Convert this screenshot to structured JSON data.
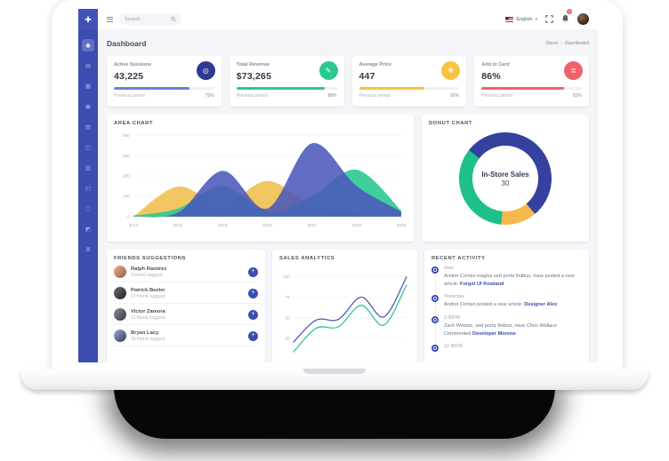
{
  "colors": {
    "theme_blue": "#3c4cb1",
    "green": "#2bc990",
    "yellow": "#f5b84b",
    "red": "#f0616d",
    "page_bg": "#f3f5f8"
  },
  "sidebar": {
    "logo_glyph": "✚",
    "items": [
      {
        "name": "dashboard",
        "glyph": "◉",
        "active": true
      },
      {
        "name": "apps",
        "glyph": "▤",
        "active": false
      },
      {
        "name": "layouts",
        "glyph": "▦",
        "active": false
      },
      {
        "name": "pages",
        "glyph": "▣",
        "active": false
      },
      {
        "name": "widgets",
        "glyph": "▧",
        "active": false
      },
      {
        "name": "forms",
        "glyph": "◫",
        "active": false
      },
      {
        "name": "tables",
        "glyph": "▥",
        "active": false
      },
      {
        "name": "charts",
        "glyph": "◰",
        "active": false
      },
      {
        "name": "icons",
        "glyph": "⬡",
        "active": false
      },
      {
        "name": "maps",
        "glyph": "◩",
        "active": false
      },
      {
        "name": "share",
        "glyph": "⌘",
        "active": false
      }
    ]
  },
  "topbar": {
    "search_placeholder": "Search.",
    "language": "English",
    "caret": "▾",
    "bell_badge": "3"
  },
  "page": {
    "title": "Dashboard",
    "breadcrumb_root": "Steex",
    "breadcrumb_sep": "›",
    "breadcrumb_current": "Dashboard"
  },
  "stat_cards": [
    {
      "label": "Active Sessions",
      "value": "43,225",
      "icon": "globe-icon",
      "icon_glyph": "◎",
      "icon_color": "#2c3a94",
      "bar_color": "#6d7edc",
      "progress": 75,
      "footer": "Previous period",
      "percent": "75%"
    },
    {
      "label": "Total Revenue",
      "value": "$73,265",
      "icon": "pencil-icon",
      "icon_glyph": "✎",
      "icon_color": "#2bc990",
      "bar_color": "#2bc990",
      "progress": 88,
      "footer": "Previous period",
      "percent": "88%"
    },
    {
      "label": "Average Price",
      "value": "447",
      "icon": "tag-icon",
      "icon_glyph": "❖",
      "icon_color": "#f8c341",
      "bar_color": "#f6c343",
      "progress": 65,
      "footer": "Previous period",
      "percent": "65%"
    },
    {
      "label": "Add to Card",
      "value": "86%",
      "icon": "layers-icon",
      "icon_glyph": "≣",
      "icon_color": "#f0616d",
      "bar_color": "#f0616d",
      "progress": 82,
      "footer": "Previous period",
      "percent": "82%"
    }
  ],
  "chart_data": [
    {
      "type": "area",
      "title": "AREA CHART",
      "x": [
        "2013",
        "2014",
        "2015",
        "2016",
        "2017",
        "2018",
        "2019"
      ],
      "series": [
        {
          "name": "yellow-series",
          "color": "#efc050",
          "opacity": 0.9,
          "values": [
            0,
            148,
            60,
            175,
            60,
            15,
            5
          ]
        },
        {
          "name": "green-series",
          "color": "#2bc990",
          "opacity": 0.9,
          "values": [
            5,
            40,
            150,
            25,
            100,
            230,
            30
          ]
        },
        {
          "name": "blue-series",
          "color": "#4b58b9",
          "opacity": 0.88,
          "values": [
            0,
            20,
            225,
            40,
            360,
            150,
            25
          ]
        }
      ],
      "ylim": [
        0,
        400
      ],
      "yticks": [
        0,
        100,
        200,
        300,
        400
      ],
      "grid": true,
      "legend": false
    },
    {
      "type": "pie",
      "title": "DONUT CHART",
      "center_label": "In-Store Sales",
      "center_value": "30",
      "start_angle_deg": -52,
      "slices": [
        {
          "name": "segment-1",
          "deg": 192,
          "percent": 53.3,
          "color": "#35419e"
        },
        {
          "name": "segment-2",
          "deg": 45,
          "percent": 12.5,
          "color": "#f5b84b"
        },
        {
          "name": "segment-3",
          "deg": 123,
          "percent": 34.2,
          "color": "#1fc08a"
        }
      ]
    },
    {
      "type": "line",
      "title": "SALES ANALYTICS",
      "x": [
        1,
        2,
        3,
        4,
        5,
        6
      ],
      "series": [
        {
          "name": "blue-line",
          "color": "#4b58b9",
          "values": [
            20,
            47,
            48,
            75,
            51,
            100
          ]
        },
        {
          "name": "green-line",
          "color": "#2bc990",
          "values": [
            8,
            37,
            39,
            65,
            41,
            90
          ]
        }
      ],
      "ylim": [
        0,
        110
      ],
      "yticks": [
        25,
        50,
        75,
        100
      ],
      "grid": true,
      "legend": false
    }
  ],
  "friends": {
    "title": "FRIENDS SUGGESTIONS",
    "add_glyph": "+",
    "items": [
      {
        "name": "Ralph Ramirez",
        "subtext": "3 friend suggest",
        "avatar_color": "linear-gradient(135deg,#e8b29a,#9a5a3c)"
      },
      {
        "name": "Patrick Beeler",
        "subtext": "17 friend suggest",
        "avatar_color": "linear-gradient(135deg,#6b6b75,#232329)"
      },
      {
        "name": "Victor Zamora",
        "subtext": "12 friend suggest",
        "avatar_color": "linear-gradient(135deg,#8a8f99,#30343c)"
      },
      {
        "name": "Bryan Lacy",
        "subtext": "18 friend suggest",
        "avatar_color": "linear-gradient(135deg,#9fb0c9,#2e3a55)"
      }
    ]
  },
  "activity": {
    "title": "RECENT ACTIVITY",
    "items": [
      {
        "time": "Now",
        "text": "Andrei Coman magna sed porta finibus, risus posted a new article:",
        "link": "Forget UI Rowland"
      },
      {
        "time": "Yesterday",
        "text": "Andrei Coman posted a new article:",
        "link": "Designer Alex"
      },
      {
        "time": "2:30PM",
        "text": "Zack Wetass, sed porta finibus, risus Chris Wallace Commented",
        "link": "Developer Moreno"
      },
      {
        "time": "12:45PM",
        "text": "",
        "link": ""
      }
    ]
  }
}
